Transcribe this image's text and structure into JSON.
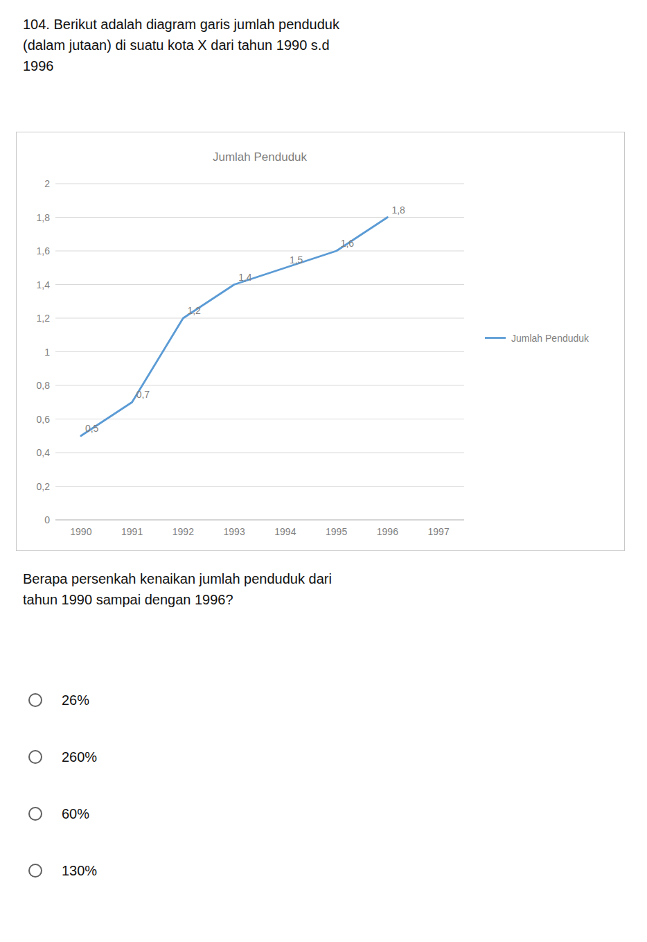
{
  "heading": "104. Berikut adalah diagram garis jumlah penduduk\n(dalam jutaan) di suatu kota X dari tahun 1990 s.d\n1996",
  "question": "Berapa persenkah kenaikan jumlah penduduk dari\ntahun 1990 sampai dengan 1996?",
  "options": [
    "26%",
    "260%",
    "60%",
    "130%"
  ],
  "chart_data": {
    "type": "line",
    "title": "Jumlah Penduduk",
    "x": [
      1990,
      1991,
      1992,
      1993,
      1994,
      1995,
      1996
    ],
    "series": [
      {
        "name": "Jumlah Penduduk",
        "color": "#5B9BD5",
        "values": [
          0.5,
          0.7,
          1.2,
          1.4,
          1.5,
          1.6,
          1.8
        ],
        "value_labels": [
          "0,5",
          "0,7",
          "1,2",
          "1,4",
          "1,5",
          "1,6",
          "1,8"
        ]
      }
    ],
    "xlim": [
      1989.5,
      1997.5
    ],
    "xticks": [
      1990,
      1991,
      1992,
      1993,
      1994,
      1995,
      1996,
      1997
    ],
    "ylim": [
      0,
      2.0
    ],
    "yticks": [
      0,
      {
        "value": 0.2,
        "label": "0,2"
      },
      {
        "value": 0.4,
        "label": "0,4"
      },
      {
        "value": 0.6,
        "label": "0,6"
      },
      {
        "value": 0.8,
        "label": "0,8"
      },
      1,
      {
        "value": 1.2,
        "label": "1,2"
      },
      {
        "value": 1.4,
        "label": "1,4"
      },
      {
        "value": 1.6,
        "label": "1,6"
      },
      {
        "value": 1.8,
        "label": "1,8"
      },
      2
    ],
    "grid": true,
    "legend": "right",
    "data_labels": true
  }
}
